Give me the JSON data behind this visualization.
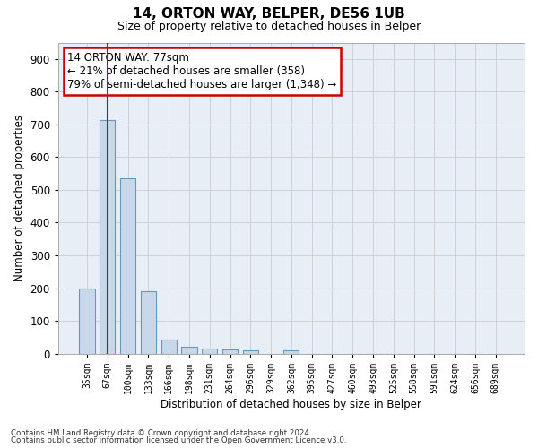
{
  "title_line1": "14, ORTON WAY, BELPER, DE56 1UB",
  "title_line2": "Size of property relative to detached houses in Belper",
  "xlabel": "Distribution of detached houses by size in Belper",
  "ylabel": "Number of detached properties",
  "categories": [
    "35sqm",
    "67sqm",
    "100sqm",
    "133sqm",
    "166sqm",
    "198sqm",
    "231sqm",
    "264sqm",
    "296sqm",
    "329sqm",
    "362sqm",
    "395sqm",
    "427sqm",
    "460sqm",
    "493sqm",
    "525sqm",
    "558sqm",
    "591sqm",
    "624sqm",
    "656sqm",
    "689sqm"
  ],
  "values": [
    200,
    714,
    535,
    192,
    42,
    20,
    15,
    13,
    10,
    0,
    10,
    0,
    0,
    0,
    0,
    0,
    0,
    0,
    0,
    0,
    0
  ],
  "bar_color": "#c8d8ea",
  "bar_edge_color": "#6699bb",
  "annotation_text_line1": "14 ORTON WAY: 77sqm",
  "annotation_text_line2": "← 21% of detached houses are smaller (358)",
  "annotation_text_line3": "79% of semi-detached houses are larger (1,348) →",
  "annotation_box_color": "#ffffff",
  "annotation_box_edge": "#cc0000",
  "vline_color": "#cc0000",
  "vline_x": 1,
  "ylim": [
    0,
    950
  ],
  "yticks": [
    0,
    100,
    200,
    300,
    400,
    500,
    600,
    700,
    800,
    900
  ],
  "grid_color": "#cccccc",
  "bg_color": "#e8eef6",
  "footer_line1": "Contains HM Land Registry data © Crown copyright and database right 2024.",
  "footer_line2": "Contains public sector information licensed under the Open Government Licence v3.0."
}
